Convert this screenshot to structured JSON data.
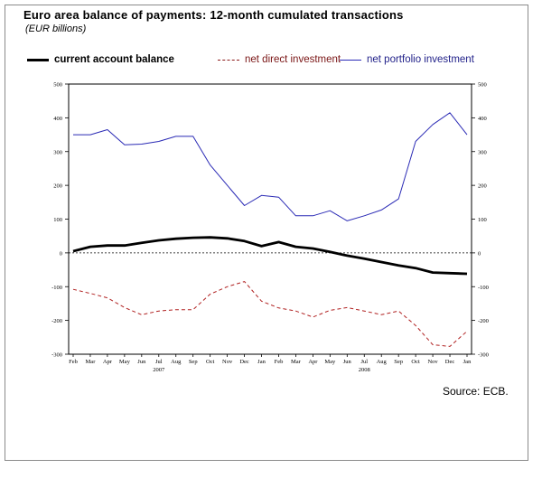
{
  "title": "Euro area balance of payments: 12-month cumulated transactions",
  "subtitle": "(EUR billions)",
  "source": "Source: ECB.",
  "legend": {
    "current_account": "current account balance",
    "direct_investment": "net direct investment",
    "portfolio_investment": "net portfolio investment"
  },
  "colors": {
    "current_account": "#000000",
    "direct_investment": "#b02020",
    "portfolio_investment": "#2a2ab5"
  },
  "chart_data": {
    "type": "line",
    "x": [
      "Feb",
      "Mar",
      "Apr",
      "May",
      "Jun",
      "Jul",
      "Aug",
      "Sep",
      "Oct",
      "Nov",
      "Dec",
      "Jan",
      "Feb",
      "Mar",
      "Apr",
      "May",
      "Jun",
      "Jul",
      "Aug",
      "Sep",
      "Oct",
      "Nov",
      "Dec",
      "Jan"
    ],
    "year_labels": [
      {
        "label": "2007",
        "index": 5
      },
      {
        "label": "2008",
        "index": 17
      }
    ],
    "ylim": [
      -300,
      500
    ],
    "yticks": [
      -300,
      -200,
      -100,
      0,
      100,
      200,
      300,
      400,
      500
    ],
    "grid": false,
    "legend_position": "top",
    "series": [
      {
        "name": "current account balance",
        "style": "solid-thick",
        "values": [
          5,
          18,
          22,
          22,
          30,
          37,
          42,
          45,
          46,
          43,
          35,
          20,
          32,
          18,
          13,
          3,
          -8,
          -17,
          -27,
          -37,
          -45,
          -58,
          -60,
          -62
        ]
      },
      {
        "name": "net direct investment",
        "style": "dashed",
        "values": [
          -108,
          -120,
          -133,
          -162,
          -183,
          -172,
          -168,
          -168,
          -122,
          -100,
          -85,
          -143,
          -163,
          -172,
          -190,
          -170,
          -162,
          -172,
          -183,
          -172,
          -215,
          -272,
          -277,
          -232
        ]
      },
      {
        "name": "net portfolio investment",
        "style": "solid-thin",
        "values": [
          350,
          350,
          365,
          320,
          322,
          330,
          345,
          345,
          260,
          200,
          140,
          170,
          165,
          110,
          110,
          125,
          95,
          110,
          127,
          160,
          330,
          380,
          415,
          350
        ]
      }
    ]
  }
}
